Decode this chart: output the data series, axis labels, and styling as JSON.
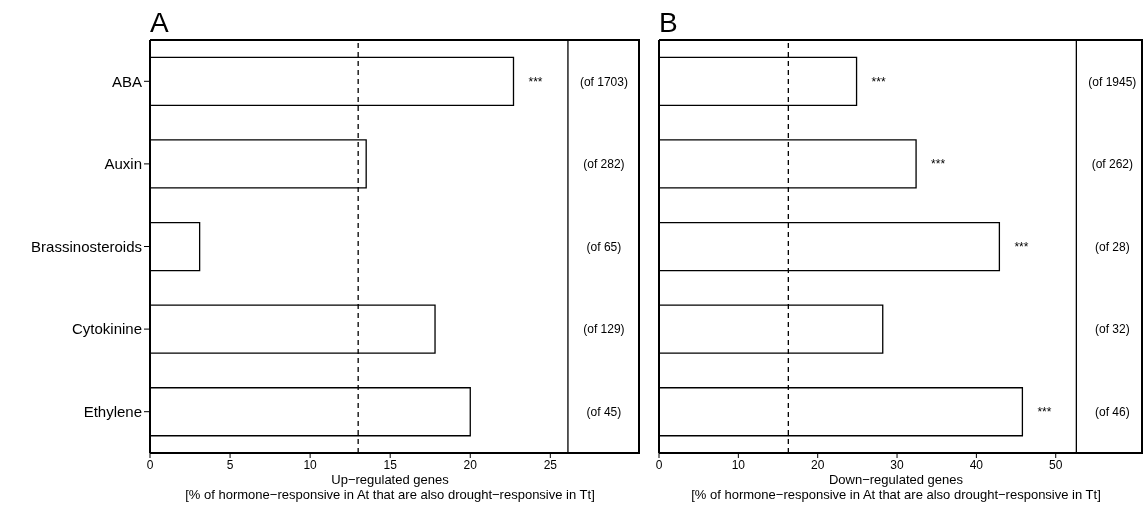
{
  "chart_data": [
    {
      "type": "bar",
      "orientation": "horizontal",
      "title": "A",
      "xlabel": "Up−regulated genes\n[% of hormone−responsive in At that are also drought−responsive in Tt]",
      "categories": [
        "ABA",
        "Auxin",
        "Brassinosteroids",
        "Cytokinine",
        "Ethylene"
      ],
      "series": [
        {
          "color": "#ffffff",
          "values": [
            22.7,
            13.5,
            3.1,
            17.8,
            20.0
          ]
        }
      ],
      "xlim": [
        0,
        30.6
      ],
      "xticks": [
        0,
        5,
        10,
        15,
        20,
        25
      ],
      "grid": false,
      "legend": false,
      "ref_lines": [
        {
          "axis": "x",
          "value": 13.0,
          "line_style": "dashed",
          "color": "#000000"
        },
        {
          "axis": "x",
          "value": 26.1,
          "line_style": "solid",
          "color": "#000000"
        }
      ],
      "annotations": [
        {
          "text": "***",
          "x": 22.7,
          "y": "ABA"
        },
        {
          "text": "(of 1703)",
          "x": 26.1,
          "y": "ABA"
        },
        {
          "text": "(of 282)",
          "x": 26.1,
          "y": "Auxin"
        },
        {
          "text": "(of 65)",
          "x": 26.1,
          "y": "Brassinosteroids"
        },
        {
          "text": "(of 129)",
          "x": 26.1,
          "y": "Cytokinine"
        },
        {
          "text": "(of 45)",
          "x": 26.1,
          "y": "Ethylene"
        }
      ]
    },
    {
      "type": "bar",
      "orientation": "horizontal",
      "title": "B",
      "xlabel": "Down−regulated genes\n[% of hormone−responsive in At that are also drought−responsive in Tt]",
      "categories": [
        "ABA",
        "Auxin",
        "Brassinosteroids",
        "Cytokinine",
        "Ethylene"
      ],
      "tick_labels": "x",
      "series": [
        {
          "color": "#ffffff",
          "values": [
            24.9,
            32.4,
            42.9,
            28.2,
            45.8
          ]
        }
      ],
      "xlim": [
        0,
        61
      ],
      "xticks": [
        0,
        10,
        20,
        30,
        40,
        50
      ],
      "grid": false,
      "legend": false,
      "ref_lines": [
        {
          "axis": "x",
          "value": 16.3,
          "line_style": "dashed",
          "color": "#000000"
        },
        {
          "axis": "x",
          "value": 52.6,
          "line_style": "solid",
          "color": "#000000"
        }
      ],
      "annotations": [
        {
          "text": "***",
          "x": 24.9,
          "y": "ABA"
        },
        {
          "text": "***",
          "x": 32.4,
          "y": "Auxin"
        },
        {
          "text": "***",
          "x": 42.9,
          "y": "Brassinosteroids"
        },
        {
          "text": "***",
          "x": 45.8,
          "y": "Ethylene"
        },
        {
          "text": "(of 1945)",
          "x": 52.6,
          "y": "ABA"
        },
        {
          "text": "(of 262)",
          "x": 52.6,
          "y": "Auxin"
        },
        {
          "text": "(of 28)",
          "x": 52.6,
          "y": "Brassinosteroids"
        },
        {
          "text": "(of 32)",
          "x": 52.6,
          "y": "Cytokinine"
        },
        {
          "text": "(of 46)",
          "x": 52.6,
          "y": "Ethylene"
        }
      ]
    }
  ]
}
